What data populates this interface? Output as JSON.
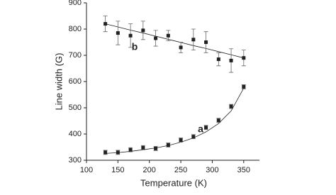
{
  "chart_data": {
    "type": "scatter",
    "x_label": "Temperature (K)",
    "y_label": "Line width (G)",
    "xlim": [
      100,
      375
    ],
    "ylim": [
      300,
      900
    ],
    "xticks": [
      100,
      150,
      200,
      250,
      300,
      350
    ],
    "yticks": [
      300,
      400,
      500,
      600,
      700,
      800,
      900
    ],
    "x": [
      130,
      150,
      170,
      190,
      210,
      230,
      250,
      270,
      290,
      310,
      330,
      350
    ],
    "series": [
      {
        "name": "a",
        "color": "#222222",
        "values": [
          330,
          330,
          340,
          348,
          345,
          358,
          377,
          390,
          425,
          452,
          505,
          580
        ],
        "errors": [
          8,
          8,
          8,
          8,
          8,
          8,
          8,
          8,
          8,
          8,
          8,
          8
        ],
        "fit": [
          326,
          329,
          334,
          340,
          347,
          356,
          369,
          385,
          408,
          440,
          488,
          575
        ]
      },
      {
        "name": "b",
        "color": "#222222",
        "values": [
          820,
          785,
          775,
          795,
          765,
          775,
          730,
          760,
          750,
          685,
          680,
          690
        ],
        "errors": [
          30,
          45,
          45,
          35,
          30,
          20,
          20,
          40,
          40,
          25,
          45,
          30
        ],
        "fit": [
          820,
          808,
          796,
          785,
          773,
          761,
          749,
          737,
          726,
          714,
          702,
          690
        ]
      }
    ]
  }
}
